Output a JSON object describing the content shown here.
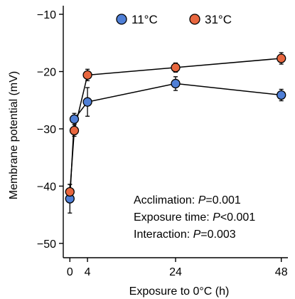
{
  "chart_data": {
    "type": "line",
    "title": "",
    "xlabel": "Exposure to 0°C (h)",
    "ylabel": "Membrane potential (mV)",
    "xlim": [
      -1.5,
      49.5
    ],
    "ylim": [
      -52.5,
      -8.5
    ],
    "x_ticks": [
      0,
      4,
      24,
      48
    ],
    "x_tick_labels": [
      "0",
      "4",
      "24",
      "48"
    ],
    "y_ticks": [
      -10,
      -20,
      -30,
      -40,
      -50
    ],
    "y_tick_labels": [
      "−10",
      "−20",
      "−30",
      "−40",
      "−50"
    ],
    "grid": false,
    "legend_position": "top",
    "series": [
      {
        "name": "11°C",
        "color": "#4f7fd6",
        "x": [
          0,
          1,
          4,
          24,
          48
        ],
        "y": [
          -42.2,
          -28.3,
          -25.3,
          -22.1,
          -24.1
        ],
        "error": [
          2.5,
          1.0,
          2.5,
          1.2,
          1.0
        ]
      },
      {
        "name": "31°C",
        "color": "#e8673f",
        "x": [
          0,
          1,
          4,
          24,
          48
        ],
        "y": [
          -41.0,
          -30.3,
          -20.6,
          -19.3,
          -17.7
        ],
        "error": [
          1.3,
          1.0,
          1.0,
          0.8,
          1.0
        ]
      }
    ],
    "annotations": [
      {
        "label": "Acclimation: ",
        "symbol": "P",
        "value": "=0.001"
      },
      {
        "label": "Exposure time: ",
        "symbol": "P",
        "value": "<0.001"
      },
      {
        "label": "Interaction: ",
        "symbol": "P",
        "value": "=0.003"
      }
    ]
  }
}
